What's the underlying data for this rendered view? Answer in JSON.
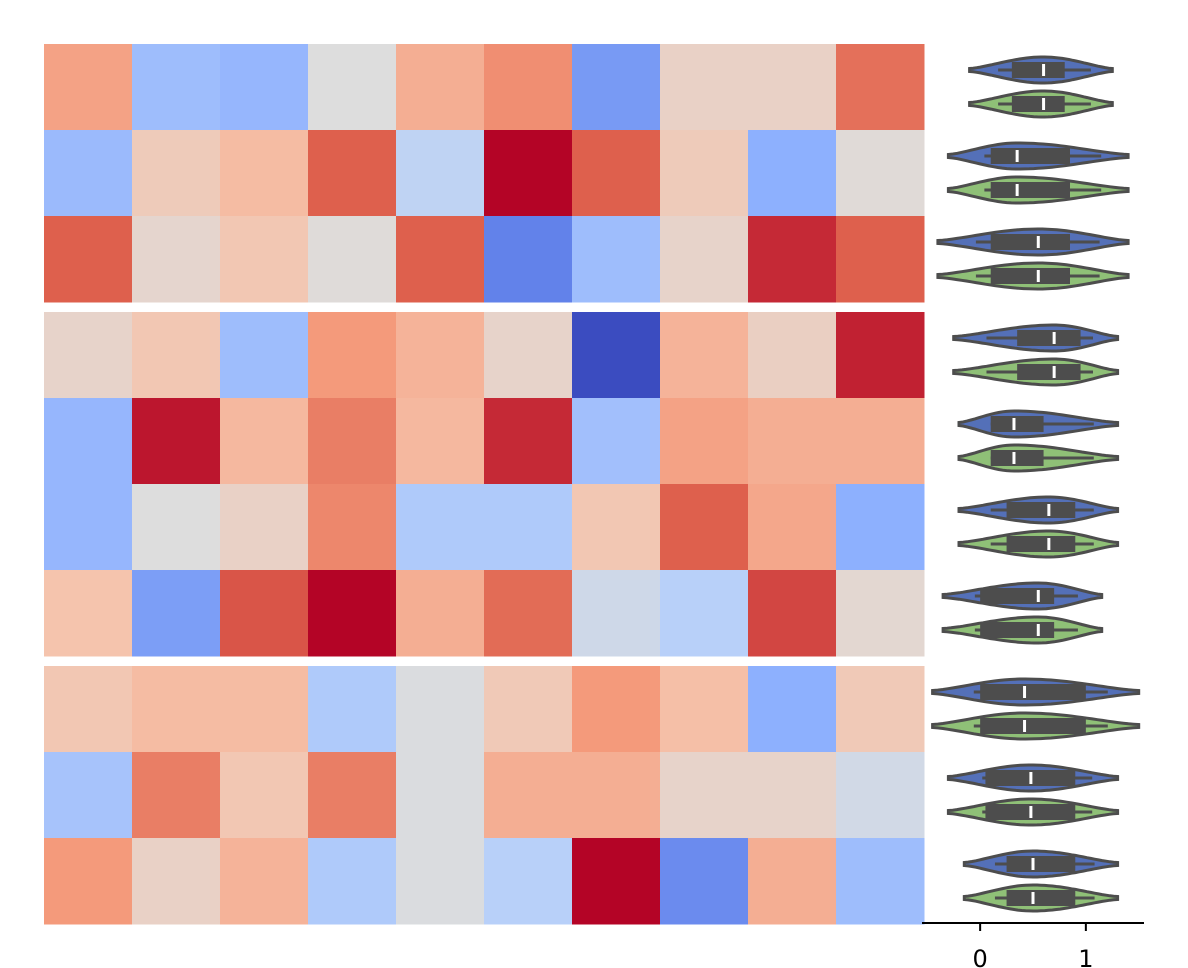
{
  "chart_data": [
    {
      "type": "heatmap",
      "title": "",
      "colormap": "coolwarm",
      "value_range": [
        -1,
        1
      ],
      "groups": [
        {
          "rows": [
            [
              0.45,
              -0.4,
              -0.45,
              0.0,
              0.38,
              0.55,
              -0.62,
              0.12,
              0.12,
              0.68
            ],
            [
              -0.42,
              0.18,
              0.3,
              0.75,
              -0.2,
              1.0,
              0.75,
              0.18,
              -0.5,
              0.03
            ],
            [
              0.75,
              0.08,
              0.22,
              0.02,
              0.75,
              -0.75,
              -0.4,
              0.1,
              0.9,
              0.75
            ]
          ]
        },
        {
          "rows": [
            [
              0.1,
              0.22,
              -0.4,
              0.5,
              0.35,
              0.1,
              -1.0,
              0.35,
              0.14,
              0.92
            ],
            [
              -0.45,
              0.95,
              0.32,
              0.62,
              0.32,
              0.9,
              -0.38,
              0.45,
              0.38,
              0.38
            ],
            [
              -0.45,
              0.0,
              0.12,
              0.58,
              -0.3,
              -0.3,
              0.22,
              0.75,
              0.42,
              -0.5
            ],
            [
              0.25,
              -0.6,
              0.78,
              1.0,
              0.38,
              0.7,
              -0.1,
              -0.25,
              0.82,
              0.06
            ]
          ]
        },
        {
          "rows": [
            [
              0.22,
              0.3,
              0.3,
              -0.3,
              -0.02,
              0.2,
              0.5,
              0.28,
              -0.5,
              0.2
            ],
            [
              -0.35,
              0.62,
              0.22,
              0.62,
              -0.02,
              0.38,
              0.38,
              0.1,
              0.1,
              -0.08
            ],
            [
              0.5,
              0.12,
              0.35,
              -0.3,
              -0.02,
              -0.25,
              1.0,
              -0.7,
              0.38,
              -0.4
            ]
          ]
        }
      ]
    },
    {
      "type": "violin",
      "title": "",
      "orientation": "horizontal",
      "xlim": [
        -0.55,
        1.55
      ],
      "xticks": [
        0,
        1
      ],
      "xtick_labels": [
        "0",
        "1"
      ],
      "series_colors": [
        "#5470b8",
        "#8fc077"
      ],
      "outline_color": "#4d4d4d",
      "rows": [
        {
          "pair": [
            {
              "min": -0.1,
              "q1": 0.3,
              "median": 0.6,
              "q3": 0.8,
              "max": 1.25
            },
            {
              "min": -0.1,
              "q1": 0.3,
              "median": 0.6,
              "q3": 0.8,
              "max": 1.25
            }
          ]
        },
        {
          "pair": [
            {
              "min": -0.3,
              "q1": 0.1,
              "median": 0.35,
              "q3": 0.85,
              "max": 1.4
            },
            {
              "min": -0.3,
              "q1": 0.1,
              "median": 0.35,
              "q3": 0.85,
              "max": 1.4
            }
          ]
        },
        {
          "pair": [
            {
              "min": -0.4,
              "q1": 0.1,
              "median": 0.55,
              "q3": 0.85,
              "max": 1.4
            },
            {
              "min": -0.4,
              "q1": 0.1,
              "median": 0.55,
              "q3": 0.85,
              "max": 1.4
            }
          ]
        },
        {
          "pair": [
            {
              "min": -0.25,
              "q1": 0.35,
              "median": 0.7,
              "q3": 0.95,
              "max": 1.3
            },
            {
              "min": -0.25,
              "q1": 0.35,
              "median": 0.7,
              "q3": 0.95,
              "max": 1.3
            }
          ]
        },
        {
          "pair": [
            {
              "min": -0.2,
              "q1": 0.1,
              "median": 0.32,
              "q3": 0.6,
              "max": 1.3
            },
            {
              "min": -0.2,
              "q1": 0.1,
              "median": 0.32,
              "q3": 0.6,
              "max": 1.3
            }
          ]
        },
        {
          "pair": [
            {
              "min": -0.2,
              "q1": 0.25,
              "median": 0.65,
              "q3": 0.9,
              "max": 1.3
            },
            {
              "min": -0.2,
              "q1": 0.25,
              "median": 0.65,
              "q3": 0.9,
              "max": 1.3
            }
          ]
        },
        {
          "pair": [
            {
              "min": -0.35,
              "q1": 0.0,
              "median": 0.55,
              "q3": 0.7,
              "max": 1.15
            },
            {
              "min": -0.35,
              "q1": 0.0,
              "median": 0.55,
              "q3": 0.7,
              "max": 1.15
            }
          ]
        },
        {
          "pair": [
            {
              "min": -0.45,
              "q1": 0.0,
              "median": 0.42,
              "q3": 1.0,
              "max": 1.5
            },
            {
              "min": -0.45,
              "q1": 0.0,
              "median": 0.42,
              "q3": 1.0,
              "max": 1.5
            }
          ]
        },
        {
          "pair": [
            {
              "min": -0.3,
              "q1": 0.05,
              "median": 0.48,
              "q3": 0.9,
              "max": 1.3
            },
            {
              "min": -0.3,
              "q1": 0.05,
              "median": 0.48,
              "q3": 0.9,
              "max": 1.3
            }
          ]
        },
        {
          "pair": [
            {
              "min": -0.15,
              "q1": 0.25,
              "median": 0.5,
              "q3": 0.9,
              "max": 1.3
            },
            {
              "min": -0.15,
              "q1": 0.25,
              "median": 0.5,
              "q3": 0.9,
              "max": 1.3
            }
          ]
        }
      ]
    }
  ]
}
